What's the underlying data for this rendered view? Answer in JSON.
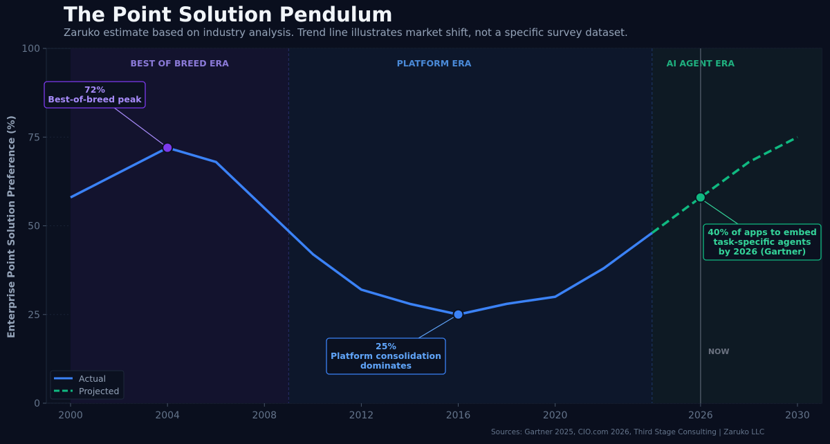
{
  "title": "The Point Solution Pendulum",
  "subtitle": "Zaruko estimate based on industry analysis. Trend line illustrates market shift, not a specific survey dataset.",
  "sources": "Sources: Gartner 2025, CIO.com 2026, Third Stage Consulting  |  Zaruko LLC",
  "colors": {
    "background": "#0a0f1e",
    "actual": "#3b82f6",
    "projected": "#10b981",
    "peak": "#7c3aed",
    "era_best": "#8b7ad8",
    "era_platform": "#4a8ad8",
    "era_ai": "#1fb07f"
  },
  "chart_data": {
    "type": "line",
    "title": "The Point Solution Pendulum",
    "xlabel": "",
    "ylabel": "Enterprise Point Solution Preference (%)",
    "xlim": [
      1999,
      2031
    ],
    "ylim": [
      0,
      100
    ],
    "x_ticks": [
      "2000",
      "2004",
      "2008",
      "2012",
      "2016",
      "2020",
      "2026",
      "2030"
    ],
    "x_tick_values": [
      2000,
      2004,
      2008,
      2012,
      2016,
      2020,
      2026,
      2030
    ],
    "y_ticks": [
      "0",
      "25",
      "50",
      "75",
      "100"
    ],
    "y_tick_values": [
      0,
      25,
      50,
      75,
      100
    ],
    "grid": true,
    "legend_position": "bottom-left",
    "series": [
      {
        "name": "Actual",
        "style": "solid",
        "color": "#3b82f6",
        "x": [
          2000,
          2004,
          2006,
          2008,
          2010,
          2012,
          2014,
          2016,
          2018,
          2020,
          2022,
          2024
        ],
        "y": [
          58,
          72,
          68,
          55,
          42,
          32,
          28,
          25,
          28,
          30,
          38,
          48
        ]
      },
      {
        "name": "Projected",
        "style": "dashed",
        "color": "#10b981",
        "x": [
          2024,
          2026,
          2028,
          2030
        ],
        "y": [
          48,
          58,
          68,
          75
        ]
      }
    ],
    "eras": [
      {
        "label": "BEST OF BREED ERA",
        "start": 2000,
        "end": 2009,
        "color": "#8b7ad8",
        "fill": "#13132e"
      },
      {
        "label": "PLATFORM ERA",
        "start": 2009,
        "end": 2024,
        "color": "#4a8ad8",
        "fill": "#0d172b"
      },
      {
        "label": "AI AGENT ERA",
        "start": 2024,
        "end": 2031,
        "color": "#1fb07f",
        "fill": "#0e1a24"
      }
    ],
    "now_line": {
      "x": 2026,
      "label": "NOW"
    },
    "annotations": [
      {
        "x": 2004,
        "y": 72,
        "color": "#a78bfa",
        "border": "#7c3aed",
        "marker": "#7c3aed",
        "lines": [
          "72%",
          "Best-of-breed peak"
        ]
      },
      {
        "x": 2016,
        "y": 25,
        "color": "#60a5fa",
        "border": "#3b82f6",
        "marker": "#3b82f6",
        "lines": [
          "25%",
          "Platform consolidation",
          "dominates"
        ]
      },
      {
        "x": 2026,
        "y": 58,
        "color": "#34d399",
        "border": "#10b981",
        "marker": "#10b981",
        "lines": [
          "40% of apps to embed",
          "task-specific agents",
          "by 2026 (Gartner)"
        ]
      }
    ]
  }
}
